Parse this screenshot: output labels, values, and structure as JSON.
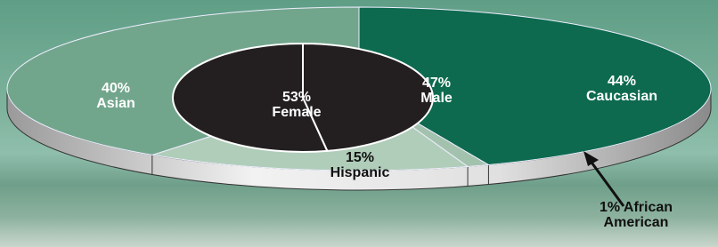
{
  "chart_data": [
    {
      "type": "pie",
      "categories": [
        "Caucasian",
        "African American",
        "Hispanic",
        "Asian"
      ],
      "values": [
        44,
        1,
        15,
        40
      ],
      "value_labels": [
        "44%",
        "1%",
        "15%",
        "40%"
      ],
      "colors": [
        "#0d6a4e",
        "#a3c2ad",
        "#b0cdb9",
        "#72a68c"
      ]
    },
    {
      "type": "pie",
      "categories": [
        "Male",
        "Female"
      ],
      "values": [
        47,
        53
      ],
      "value_labels": [
        "47%",
        "53%"
      ],
      "colors": [
        "#231f20",
        "#231f20"
      ]
    }
  ]
}
